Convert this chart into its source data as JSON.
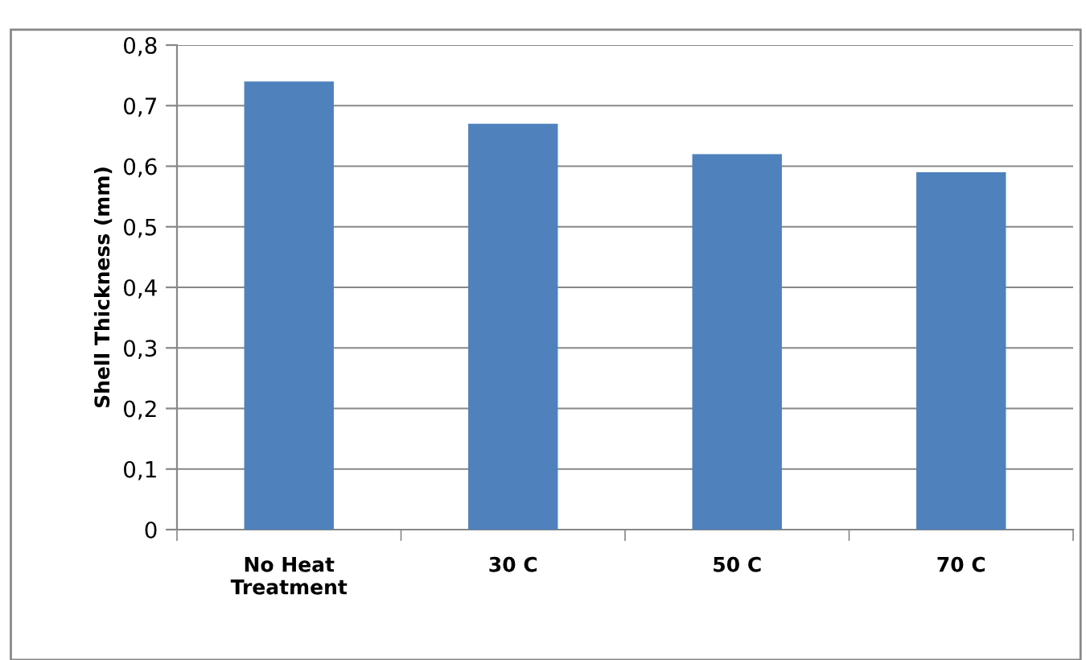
{
  "chart_data": {
    "type": "bar",
    "ylabel": "Shell Thickness (mm)",
    "categories": [
      "No Heat\nTreatment",
      "30 C",
      "50 C",
      "70 C"
    ],
    "values": [
      0.74,
      0.67,
      0.62,
      0.59
    ],
    "color": "#4f81bd",
    "ylim": [
      0,
      0.8
    ],
    "yticks": [
      {
        "value": 0,
        "label": "0"
      },
      {
        "value": 0.1,
        "label": "0,1"
      },
      {
        "value": 0.2,
        "label": "0,2"
      },
      {
        "value": 0.3,
        "label": "0,3"
      },
      {
        "value": 0.4,
        "label": "0,4"
      },
      {
        "value": 0.5,
        "label": "0,5"
      },
      {
        "value": 0.6,
        "label": "0,6"
      },
      {
        "value": 0.7,
        "label": "0,7"
      },
      {
        "value": 0.8,
        "label": "0,8"
      }
    ],
    "grid": "y",
    "legend": false
  }
}
